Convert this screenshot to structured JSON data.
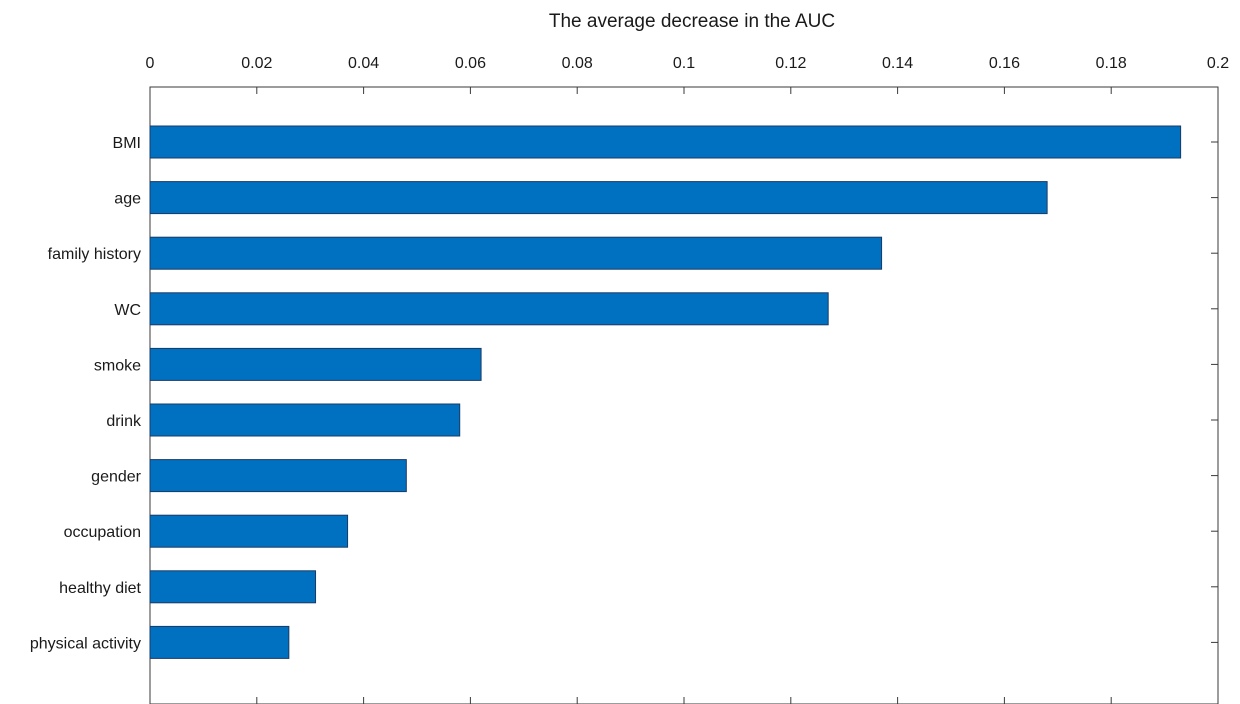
{
  "chart_data": {
    "type": "bar",
    "orientation": "horizontal",
    "title": "",
    "xlabel": "The average decrease in the AUC",
    "ylabel": "",
    "x_axis_position": "top",
    "xlim": [
      0,
      0.2
    ],
    "xticks": [
      0,
      0.02,
      0.04,
      0.06,
      0.08,
      0.1,
      0.12,
      0.14,
      0.16,
      0.18,
      0.2
    ],
    "xtick_labels": [
      "0",
      "0.02",
      "0.04",
      "0.06",
      "0.08",
      "0.1",
      "0.12",
      "0.14",
      "0.16",
      "0.18",
      "0.2"
    ],
    "categories": [
      "BMI",
      "age",
      "family history",
      "WC",
      "smoke",
      "drink",
      "gender",
      "occupation",
      "healthy diet",
      "physical activity"
    ],
    "values": [
      0.193,
      0.168,
      0.137,
      0.127,
      0.062,
      0.058,
      0.048,
      0.037,
      0.031,
      0.026
    ],
    "bar_color": "#0070c0",
    "grid": false,
    "legend": "none"
  }
}
